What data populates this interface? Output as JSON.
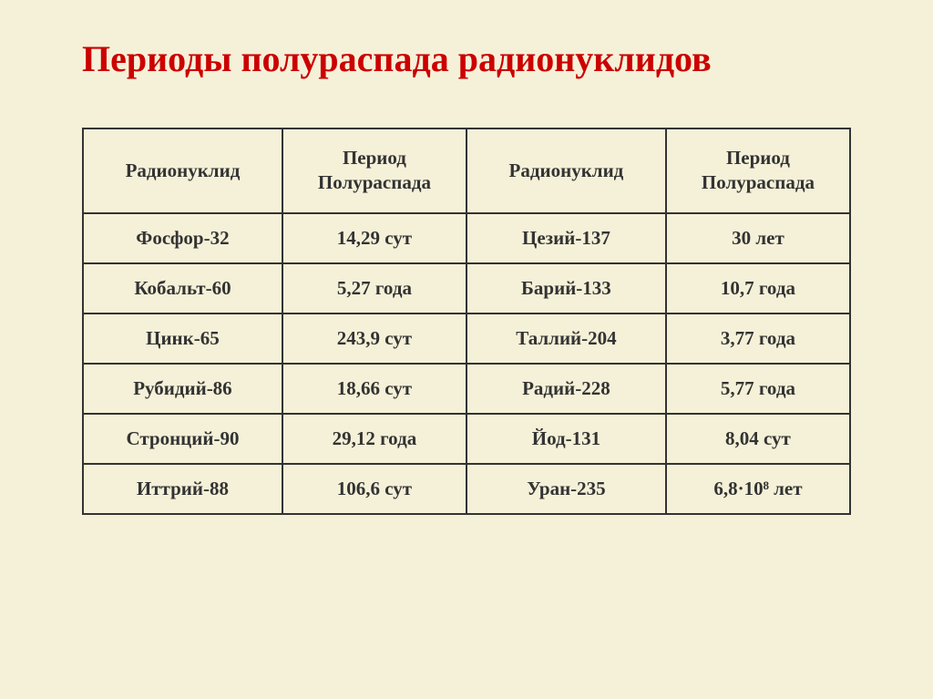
{
  "slide": {
    "title": "Периоды полураспада радионуклидов",
    "background_color": "#f5f1d8",
    "title_color": "#cc0000",
    "title_fontsize": 40,
    "border_color": "#333333",
    "text_color": "#333333",
    "cell_fontsize": 21
  },
  "table": {
    "headers": {
      "col1": "Радионуклид",
      "col2": "Период Полураспада",
      "col3": "Радионуклид",
      "col4": "Период Полураспада"
    },
    "rows": [
      {
        "nuclide1": "Фосфор-32",
        "halflife1": "14,29 сут",
        "nuclide2": "Цезий-137",
        "halflife2": "30 лет"
      },
      {
        "nuclide1": "Кобальт-60",
        "halflife1": "5,27 года",
        "nuclide2": "Барий-133",
        "halflife2": "10,7 года"
      },
      {
        "nuclide1": "Цинк-65",
        "halflife1": "243,9 сут",
        "nuclide2": "Таллий-204",
        "halflife2": "3,77 года"
      },
      {
        "nuclide1": "Рубидий-86",
        "halflife1": "18,66 сут",
        "nuclide2": "Радий-228",
        "halflife2": "5,77 года"
      },
      {
        "nuclide1": "Стронций-90",
        "halflife1": "29,12 года",
        "nuclide2": "Йод-131",
        "halflife2": "8,04 сут"
      },
      {
        "nuclide1": "Иттрий-88",
        "halflife1": "106,6 сут",
        "nuclide2": "Уран-235",
        "halflife2": "6,8·10⁸ лет"
      }
    ]
  }
}
